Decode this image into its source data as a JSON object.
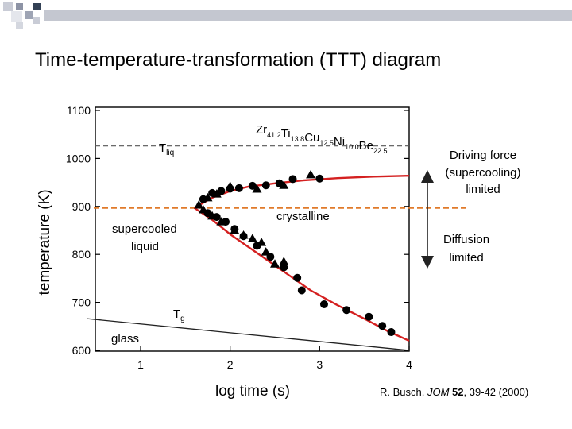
{
  "slide": {
    "title": "Time-temperature-transformation (TTT) diagram"
  },
  "citation": {
    "prefix": "R. Busch, ",
    "journal": "JOM",
    "volume": "52",
    "pages": ", 39-42 (2000)"
  },
  "colors": {
    "curve": "#d42020",
    "dashed_guide": "#e07a2a",
    "arrow": "#222222",
    "deco_dark": "#334155",
    "deco_mid": "#8d93a5",
    "deco_light": "#c9ccd6"
  },
  "chart_data": {
    "type": "scatter",
    "title": "",
    "xlabel": "log time (s)",
    "ylabel": "temperature (K)",
    "xlim": [
      0.4,
      4.0
    ],
    "ylim": [
      590,
      1100
    ],
    "xticks": [
      1,
      2,
      3,
      4
    ],
    "yticks": [
      600,
      700,
      800,
      900,
      1000,
      1100
    ],
    "composition": {
      "zr": "Zr",
      "zr_sub": "41.2",
      "ti": "Ti",
      "ti_sub": "13.8",
      "cu": "Cu",
      "cu_sub": "12.5",
      "ni": "Ni",
      "ni_sub": "10.0",
      "be": "Be",
      "be_sub": "22.5"
    },
    "annotations": {
      "tliq": "T",
      "tliq_sub": "liq",
      "tg": "T",
      "tg_sub": "g",
      "crystalline": "crystalline",
      "supercooled_1": "supercooled",
      "supercooled_2": "liquid",
      "glass": "glass"
    },
    "tliq_level": 1026,
    "guide_level": 897,
    "glass_line": [
      [
        0.4,
        666
      ],
      [
        4.0,
        600
      ]
    ],
    "nose_curve": {
      "upper": [
        [
          1.6,
          897
        ],
        [
          1.8,
          918
        ],
        [
          2.0,
          932
        ],
        [
          2.2,
          941
        ],
        [
          2.5,
          948
        ],
        [
          2.8,
          954
        ],
        [
          3.2,
          959
        ],
        [
          3.6,
          962
        ],
        [
          4.0,
          964
        ]
      ],
      "lower": [
        [
          1.6,
          897
        ],
        [
          1.8,
          872
        ],
        [
          2.0,
          842
        ],
        [
          2.3,
          803
        ],
        [
          2.6,
          764
        ],
        [
          2.9,
          725
        ],
        [
          3.2,
          694
        ],
        [
          3.5,
          666
        ],
        [
          3.75,
          641
        ],
        [
          4.0,
          620
        ]
      ]
    },
    "series": [
      {
        "name": "circles",
        "marker": "circle",
        "points": [
          [
            1.7,
            915
          ],
          [
            1.8,
            928
          ],
          [
            1.9,
            932
          ],
          [
            2.0,
            937
          ],
          [
            2.1,
            938
          ],
          [
            2.25,
            943
          ],
          [
            2.4,
            944
          ],
          [
            2.55,
            948
          ],
          [
            2.7,
            957
          ],
          [
            3.0,
            958
          ],
          [
            1.75,
            886
          ],
          [
            1.85,
            878
          ],
          [
            1.95,
            868
          ],
          [
            2.05,
            853
          ],
          [
            2.15,
            838
          ],
          [
            2.3,
            818
          ],
          [
            2.45,
            795
          ],
          [
            2.6,
            773
          ],
          [
            2.75,
            751
          ],
          [
            2.8,
            725
          ],
          [
            3.05,
            696
          ],
          [
            3.3,
            684
          ],
          [
            3.55,
            670
          ],
          [
            3.7,
            651
          ],
          [
            3.8,
            638
          ]
        ]
      },
      {
        "name": "triangles",
        "marker": "triangle",
        "points": [
          [
            1.65,
            903
          ],
          [
            1.75,
            918
          ],
          [
            1.85,
            926
          ],
          [
            2.0,
            942
          ],
          [
            2.3,
            936
          ],
          [
            2.6,
            944
          ],
          [
            2.9,
            966
          ],
          [
            1.7,
            893
          ],
          [
            1.8,
            880
          ],
          [
            1.9,
            868
          ],
          [
            2.05,
            850
          ],
          [
            2.15,
            840
          ],
          [
            2.25,
            833
          ],
          [
            2.35,
            825
          ],
          [
            2.5,
            780
          ],
          [
            2.6,
            785
          ],
          [
            2.4,
            805
          ]
        ]
      }
    ],
    "right_annotations": {
      "driving_force": [
        "Driving force",
        "(supercooling)",
        "limited"
      ],
      "diffusion": [
        "Diffusion",
        "limited"
      ]
    }
  }
}
